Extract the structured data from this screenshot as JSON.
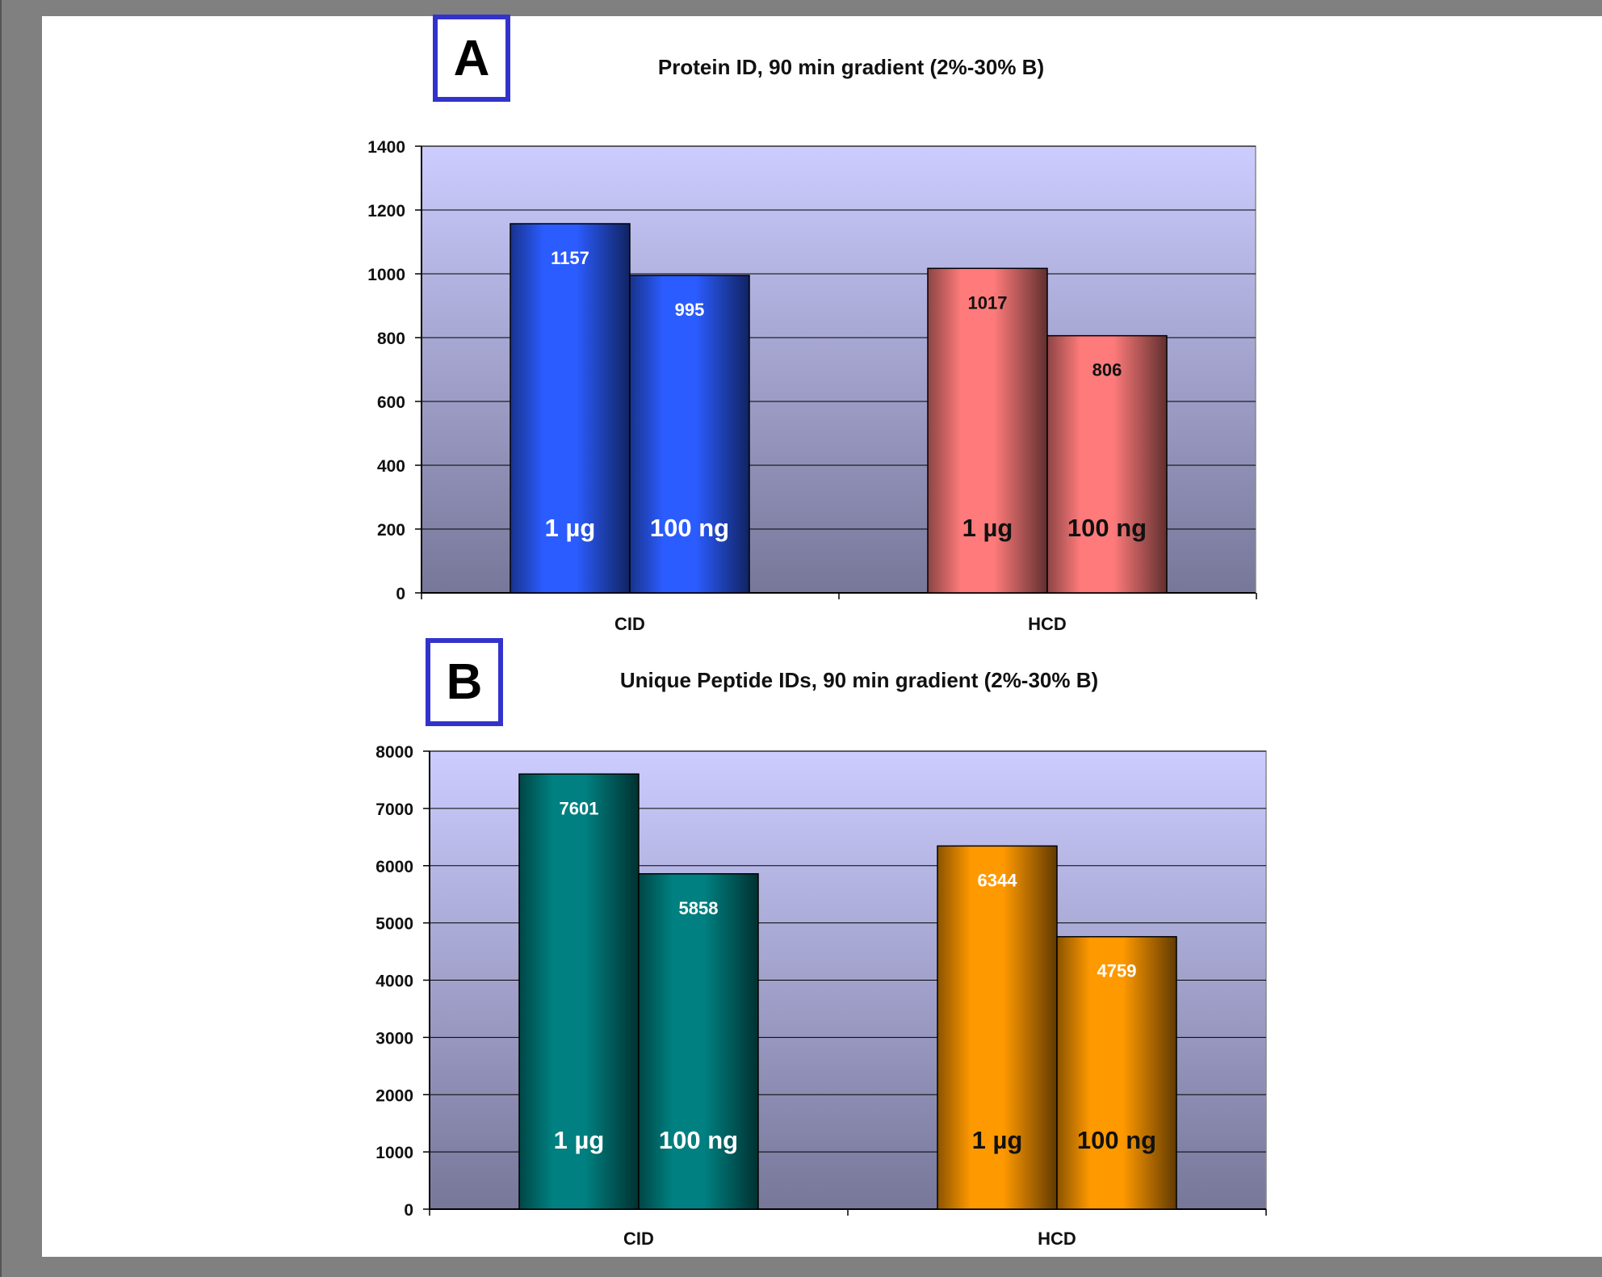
{
  "colors": {
    "plot_top": "#ccccff",
    "plot_bottom": "#777799",
    "panel_box": "#3333cc",
    "cid_a": "#2b5cff",
    "hcd_a": "#ff7b7b",
    "cid_b": "#008080",
    "hcd_b": "#ff9900"
  },
  "chart_data": [
    {
      "type": "bar",
      "panel_label": "A",
      "title": "Protein ID, 90 min gradient (2%-30% B)",
      "categories": [
        "CID",
        "HCD"
      ],
      "series": [
        {
          "name": "1 µg",
          "values": [
            1157,
            1017
          ]
        },
        {
          "name": "100 ng",
          "values": [
            995,
            806
          ]
        }
      ],
      "bar_labels": [
        [
          "1157",
          "995"
        ],
        [
          "1017",
          "806"
        ]
      ],
      "ylim": [
        0,
        1400
      ],
      "yticks": [
        0,
        200,
        400,
        600,
        800,
        1000,
        1200,
        1400
      ],
      "grid": true
    },
    {
      "type": "bar",
      "panel_label": "B",
      "title": "Unique Peptide IDs, 90 min gradient (2%-30% B)",
      "categories": [
        "CID",
        "HCD"
      ],
      "series": [
        {
          "name": "1 µg",
          "values": [
            7601,
            6344
          ]
        },
        {
          "name": "100 ng",
          "values": [
            5858,
            4759
          ]
        }
      ],
      "bar_labels": [
        [
          "7601",
          "5858"
        ],
        [
          "6344",
          "4759"
        ]
      ],
      "ylim": [
        0,
        8000
      ],
      "yticks": [
        0,
        1000,
        2000,
        3000,
        4000,
        5000,
        6000,
        7000,
        8000
      ],
      "grid": true
    }
  ]
}
